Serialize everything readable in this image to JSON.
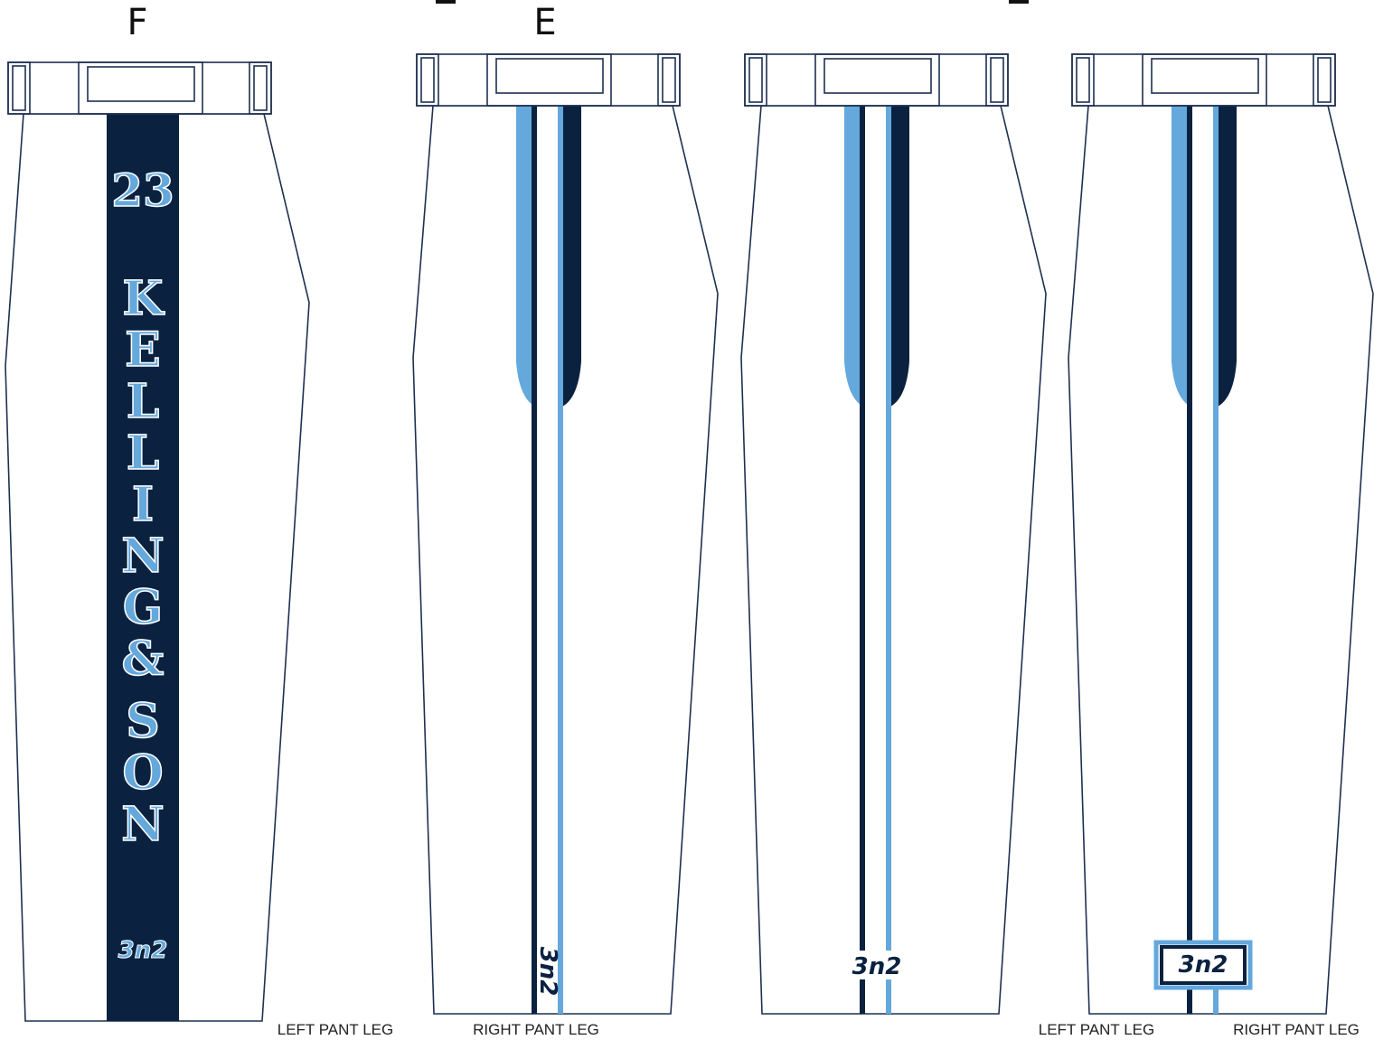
{
  "colors": {
    "navy": "#0a2240",
    "light_blue": "#64a8dc",
    "outline": "#1e3050",
    "background": "#ffffff"
  },
  "variant_labels": {
    "first": "F",
    "second": "E"
  },
  "panel_f": {
    "player_number": "23",
    "name_letters": [
      "K",
      "E",
      "L",
      "L",
      "I",
      "N",
      "G",
      "&",
      "S",
      "O",
      "N"
    ],
    "brand_logo": "3n2",
    "caption": "LEFT PANT LEG"
  },
  "panel_e": {
    "brand_logo": "3n2",
    "caption": "RIGHT PANT LEG"
  },
  "panel_three": {
    "brand_logo": "3n2"
  },
  "panel_four": {
    "brand_logo": "3n2",
    "caption_left": "LEFT PANT LEG",
    "caption_right": "RIGHT PANT LEG"
  }
}
